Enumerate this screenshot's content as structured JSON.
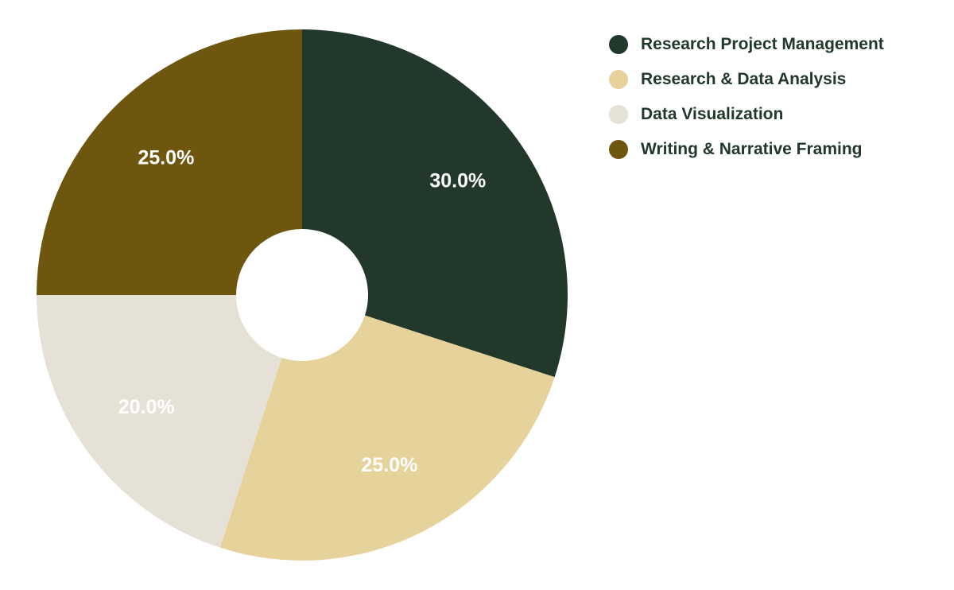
{
  "chart_data": {
    "type": "pie",
    "donut": true,
    "start_angle": "12 o'clock",
    "direction": "clockwise",
    "legend_position": "top-right",
    "categories": [
      "Research Project Management",
      "Research & Data Analysis",
      "Data Visualization",
      "Writing & Narrative Framing"
    ],
    "values": [
      30,
      25,
      20,
      25
    ],
    "labels": [
      "30.0%",
      "25.0%",
      "20.0%",
      "25.0%"
    ],
    "colors": [
      "#22382a",
      "#e6d29b",
      "#e6e1d7",
      "#6e560f"
    ]
  }
}
